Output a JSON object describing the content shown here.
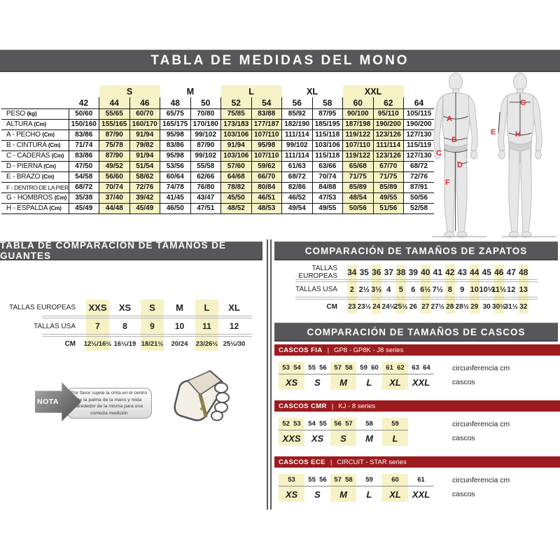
{
  "main_title": "TABLA DE MEDIDAS DEL MONO",
  "colors": {
    "bar_gray": "#57575a",
    "bar_red": "#9c1b1e",
    "highlight_yellow": "#f6f2c5",
    "diagram_letter_red": "#d92b2b"
  },
  "size_table": {
    "group_headers": [
      {
        "label": "",
        "span": 2,
        "highlight": false
      },
      {
        "label": "S",
        "span": 2,
        "highlight": true
      },
      {
        "label": "M",
        "span": 2,
        "highlight": false
      },
      {
        "label": "L",
        "span": 2,
        "highlight": true
      },
      {
        "label": "XL",
        "span": 2,
        "highlight": false
      },
      {
        "label": "XXL",
        "span": 2,
        "highlight": true
      },
      {
        "label": "",
        "span": 1,
        "highlight": false
      }
    ],
    "sizes": [
      "42",
      "44",
      "46",
      "48",
      "50",
      "52",
      "54",
      "56",
      "58",
      "60",
      "62",
      "64"
    ],
    "highlight_columns": [
      1,
      2,
      5,
      6,
      9,
      10
    ],
    "rows": [
      {
        "label": "PESO",
        "unit": "(kg)",
        "values": [
          "50/60",
          "55/65",
          "60/70",
          "65/75",
          "70/80",
          "75/85",
          "83/88",
          "85/92",
          "87/95",
          "90/100",
          "95/110",
          "105/115"
        ]
      },
      {
        "label": "ALTURA",
        "unit": "(Cm)",
        "values": [
          "150/160",
          "155/165",
          "160/170",
          "165/175",
          "170/180",
          "173/183",
          "177/187",
          "182/190",
          "185/195",
          "187/198",
          "190/200",
          "190/200"
        ]
      },
      {
        "label": "A - PECHO",
        "unit": "(Cm)",
        "values": [
          "83/86",
          "87/90",
          "91/94",
          "95/98",
          "99/102",
          "103/106",
          "107/110",
          "111/114",
          "115/118",
          "119/122",
          "123/126",
          "127/130"
        ]
      },
      {
        "label": "B - CINTURA",
        "unit": "(Cm)",
        "values": [
          "71/74",
          "75/78",
          "79/82",
          "83/86",
          "87/90",
          "91/94",
          "95/98",
          "99/102",
          "103/106",
          "107/110",
          "111/114",
          "115/119"
        ]
      },
      {
        "label": "C - CADERAS",
        "unit": "(Cm)",
        "values": [
          "83/86",
          "87/90",
          "91/94",
          "95/98",
          "99/102",
          "103/106",
          "107/110",
          "111/114",
          "115/118",
          "119/122",
          "123/126",
          "127/130"
        ]
      },
      {
        "label": "D - PIERNA",
        "unit": "(Cm)",
        "values": [
          "47/50",
          "49/52",
          "51/54",
          "53/56",
          "55/58",
          "57/60",
          "59/62",
          "61/63",
          "63/66",
          "65/68",
          "67/70",
          "68/72"
        ]
      },
      {
        "label": "E - BRAZO",
        "unit": "(Cm)",
        "values": [
          "54/58",
          "56/60",
          "58/62",
          "60/64",
          "62/66",
          "64/68",
          "66/70",
          "68/72",
          "70/74",
          "71/75",
          "71/75",
          "72/76"
        ]
      },
      {
        "label": "F - DENTRO DE LA PIERNA",
        "unit": "(Cm)",
        "values": [
          "68/72",
          "70/74",
          "72/76",
          "74/78",
          "76/80",
          "78/82",
          "80/84",
          "82/86",
          "84/88",
          "85/89",
          "85/89",
          "87/91"
        ]
      },
      {
        "label": "G - HOMBROS",
        "unit": "(Cm)",
        "values": [
          "35/38",
          "37/40",
          "39/42",
          "41/45",
          "43/47",
          "45/50",
          "46/51",
          "46/52",
          "47/53",
          "48/54",
          "49/55",
          "50/56"
        ]
      },
      {
        "label": "H - ESPALDA",
        "unit": "(Cm)",
        "values": [
          "45/49",
          "44/48",
          "45/49",
          "46/50",
          "47/51",
          "48/52",
          "48/53",
          "49/54",
          "49/55",
          "50/56",
          "51/56",
          "52/58"
        ]
      }
    ]
  },
  "body_diagram": {
    "letters": [
      "A",
      "B",
      "C",
      "D",
      "E",
      "F",
      "G",
      "H"
    ]
  },
  "gloves": {
    "title": "TABLA DE COMPARACIÓN DE TAMAÑOS DE GUANTES",
    "row_labels": [
      "TALLAS EUROPEAS",
      "TALLAS USA",
      "CM"
    ],
    "columns": [
      {
        "eu": "XXS",
        "usa": "7",
        "cm": "12½/16½",
        "highlight": true
      },
      {
        "eu": "XS",
        "usa": "8",
        "cm": "16½/19",
        "highlight": false
      },
      {
        "eu": "S",
        "usa": "9",
        "cm": "18/21½",
        "highlight": true
      },
      {
        "eu": "M",
        "usa": "10",
        "cm": "20/24",
        "highlight": false
      },
      {
        "eu": "L",
        "usa": "11",
        "cm": "23/26½",
        "highlight": true
      },
      {
        "eu": "XL",
        "usa": "12",
        "cm": "25½/30",
        "highlight": false
      }
    ],
    "nota": {
      "label": "NOTA",
      "text": "Por favor sujete la cinta en el centro de la palma de la mano y mida alrededor de la misma para una correcta medición"
    }
  },
  "shoes": {
    "title": "COMPARACIÓN DE TAMAÑOS DE ZAPATOS",
    "row_labels": [
      "TALLAS EUROPEAS",
      "TALLAS USA",
      "CM"
    ],
    "columns": [
      {
        "eu": "34",
        "usa": "2",
        "cm": "23",
        "highlight": true
      },
      {
        "eu": "35",
        "usa": "2½",
        "cm": "23½",
        "highlight": false
      },
      {
        "eu": "36",
        "usa": "3½",
        "cm": "24",
        "highlight": true
      },
      {
        "eu": "37",
        "usa": "4",
        "cm": "24½",
        "highlight": false
      },
      {
        "eu": "38",
        "usa": "5",
        "cm": "25½",
        "highlight": true
      },
      {
        "eu": "39",
        "usa": "6",
        "cm": "26",
        "highlight": false
      },
      {
        "eu": "40",
        "usa": "6½",
        "cm": "27",
        "highlight": true
      },
      {
        "eu": "41",
        "usa": "7½",
        "cm": "27½",
        "highlight": false
      },
      {
        "eu": "42",
        "usa": "8",
        "cm": "28",
        "highlight": true
      },
      {
        "eu": "43",
        "usa": "9",
        "cm": "28½",
        "highlight": false
      },
      {
        "eu": "44",
        "usa": "10",
        "cm": "29",
        "highlight": true
      },
      {
        "eu": "45",
        "usa": "10½",
        "cm": "30",
        "highlight": false
      },
      {
        "eu": "46",
        "usa": "11½",
        "cm": "30½",
        "highlight": true
      },
      {
        "eu": "47",
        "usa": "12",
        "cm": "31½",
        "highlight": false
      },
      {
        "eu": "48",
        "usa": "13",
        "cm": "32",
        "highlight": true
      }
    ]
  },
  "helmets": {
    "title": "COMPARACIÓN DE TAMAÑOS DE CASCOS",
    "col_labels": [
      "circunferencia cm",
      "cascos"
    ],
    "sections": [
      {
        "name": "CASCOS FIA",
        "series": "GP8 - GP8K - J8 series",
        "groups": [
          {
            "size": "XS",
            "circs": [
              "53",
              "54"
            ],
            "highlight": true
          },
          {
            "size": "S",
            "circs": [
              "55",
              "56"
            ],
            "highlight": false
          },
          {
            "size": "M",
            "circs": [
              "57",
              "58"
            ],
            "highlight": true
          },
          {
            "size": "L",
            "circs": [
              "59",
              "60"
            ],
            "highlight": false
          },
          {
            "size": "XL",
            "circs": [
              "61",
              "62"
            ],
            "highlight": true
          },
          {
            "size": "XXL",
            "circs": [
              "63",
              "64"
            ],
            "highlight": false
          }
        ]
      },
      {
        "name": "CASCOS CMR",
        "series": "KJ - 8 series",
        "groups": [
          {
            "size": "XXS",
            "circs": [
              "52",
              "53"
            ],
            "highlight": true
          },
          {
            "size": "XS",
            "circs": [
              "54",
              "55"
            ],
            "highlight": false
          },
          {
            "size": "S",
            "circs": [
              "56",
              "57"
            ],
            "highlight": true
          },
          {
            "size": "M",
            "circs": [
              "58"
            ],
            "highlight": false
          },
          {
            "size": "L",
            "circs": [
              "59"
            ],
            "highlight": true
          }
        ]
      },
      {
        "name": "CASCOS ECE",
        "series": "CIRCUIT - STAR series",
        "groups": [
          {
            "size": "XS",
            "circs": [
              "53"
            ],
            "highlight": true
          },
          {
            "size": "S",
            "circs": [
              "55",
              "56"
            ],
            "highlight": false
          },
          {
            "size": "M",
            "circs": [
              "57",
              "58"
            ],
            "highlight": true
          },
          {
            "size": "L",
            "circs": [
              "59"
            ],
            "highlight": false
          },
          {
            "size": "XL",
            "circs": [
              "60"
            ],
            "highlight": true
          },
          {
            "size": "XXL",
            "circs": [
              "61"
            ],
            "highlight": false
          }
        ]
      }
    ]
  }
}
